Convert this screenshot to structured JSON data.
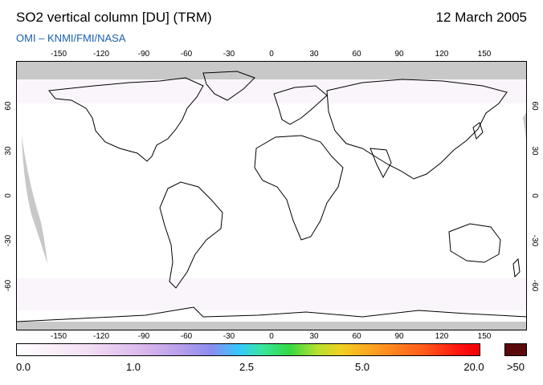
{
  "header": {
    "title": "SO2 vertical column [DU] (TRM)",
    "date": "12 March 2005",
    "credit": "OMI  –  KNMI/FMI/NASA"
  },
  "map": {
    "projection": "equirectangular",
    "lon_ticks": [
      "-150",
      "-120",
      "-90",
      "-60",
      "-30",
      "0",
      "30",
      "60",
      "90",
      "120",
      "150"
    ],
    "lat_ticks": [
      "60",
      "30",
      "0",
      "-30",
      "-60"
    ],
    "lon_values": [
      -150,
      -120,
      -90,
      -60,
      -30,
      0,
      30,
      60,
      90,
      120,
      150
    ],
    "lat_values": [
      60,
      30,
      0,
      -30,
      -60
    ],
    "lon_range": [
      -180,
      180
    ],
    "lat_range": [
      -90,
      90
    ],
    "no_data_color": "#c8c8c8",
    "coastline_color": "#000000"
  },
  "colorbar": {
    "labels": [
      "0.0",
      "1.0",
      "2.5",
      "5.0",
      "20.0"
    ],
    "overflow_label": ">50",
    "overflow_color": "#5a0a0a"
  }
}
